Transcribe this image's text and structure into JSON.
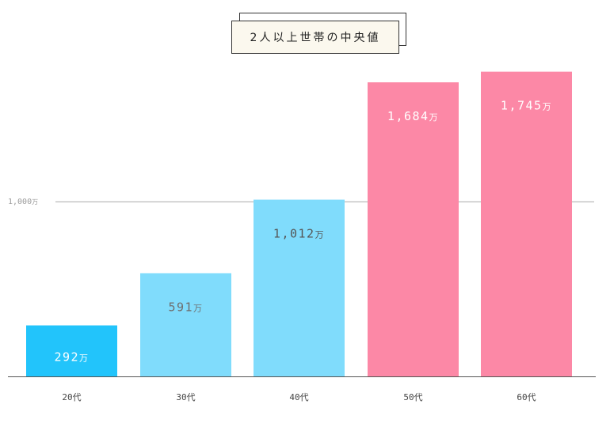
{
  "chart_data": {
    "type": "bar",
    "title": "2人以上世帯の中央値",
    "categories": [
      "20代",
      "30代",
      "40代",
      "50代",
      "60代"
    ],
    "values": [
      292,
      591,
      1012,
      1684,
      1745
    ],
    "value_labels": [
      "292",
      "591",
      "1,012",
      "1,684",
      "1,745"
    ],
    "unit": "万",
    "colors": [
      "#22c4fb",
      "#80dcfc",
      "#80dcfc",
      "#fc88a6",
      "#fc88a6"
    ],
    "label_colors": [
      "#ffffff",
      "#6e6e6e",
      "#555555",
      "#ffffff",
      "#ffffff"
    ],
    "reference_line": {
      "value": 1000,
      "label": "1,000",
      "unit": "万"
    },
    "ylim": [
      0,
      1920
    ],
    "grid": false,
    "legend": "none"
  }
}
